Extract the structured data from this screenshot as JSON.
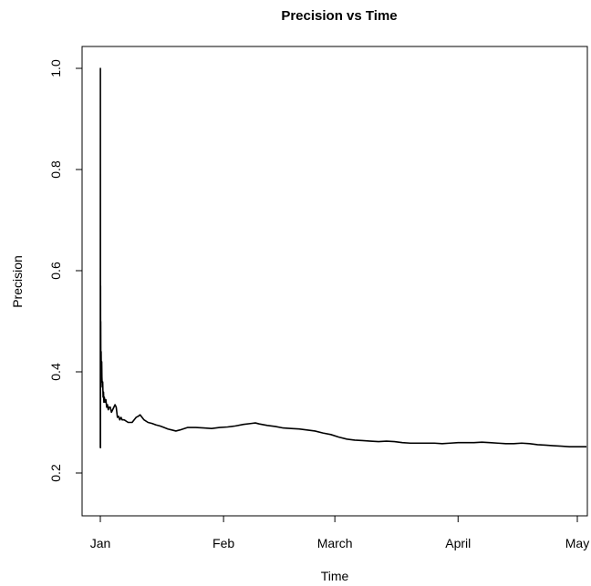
{
  "chart_data": {
    "type": "line",
    "title": "Precision vs Time",
    "xlabel": "Time",
    "ylabel": "Precision",
    "xlim": [
      0,
      121
    ],
    "ylim": [
      0.12,
      1.03
    ],
    "x_ticks": [
      {
        "label": "Jan",
        "x": 0
      },
      {
        "label": "Feb",
        "x": 31
      },
      {
        "label": "March",
        "x": 59
      },
      {
        "label": "April",
        "x": 90
      },
      {
        "label": "May",
        "x": 120
      }
    ],
    "y_ticks": [
      0.2,
      0.4,
      0.6,
      0.8,
      1.0
    ],
    "y_tick_labels": [
      "0.2",
      "0.4",
      "0.6",
      "0.8",
      "1.0"
    ],
    "grid": false,
    "series": [
      {
        "color": "#000000",
        "x": [
          0.0,
          0.02,
          0.04,
          0.06,
          0.08,
          0.1,
          0.13,
          0.16,
          0.2,
          0.25,
          0.3,
          0.35,
          0.4,
          0.5,
          0.6,
          0.7,
          0.8,
          0.9,
          1.0,
          1.2,
          1.4,
          1.6,
          1.8,
          2.0,
          2.2,
          2.5,
          2.8,
          3.1,
          3.4,
          3.7,
          4.0,
          4.3,
          4.6,
          4.9,
          5.2,
          5.5,
          6.0,
          7.0,
          8.0,
          9.0,
          9.5,
          10.0,
          11.0,
          12.0,
          13.0,
          14.0,
          15.0,
          16.0,
          17.0,
          18.0,
          19.0,
          20.0,
          22.0,
          24.0,
          26.0,
          28.0,
          30.0,
          32.0,
          34.0,
          36.0,
          38.0,
          39.0,
          40.0,
          42.0,
          44.0,
          46.0,
          48.0,
          50.0,
          52.0,
          54.0,
          56.0,
          58.0,
          60.0,
          62.0,
          64.0,
          66.0,
          68.0,
          70.0,
          72.0,
          74.0,
          76.0,
          78.0,
          80.0,
          82.0,
          84.0,
          86.0,
          88.0,
          90.0,
          92.0,
          94.0,
          96.0,
          98.0,
          100.0,
          102.0,
          104.0,
          106.0,
          108.0,
          110.0,
          112.0,
          114.0,
          116.0,
          118.0,
          120.0,
          123.0
        ],
        "y": [
          0.25,
          1.0,
          0.25,
          0.57,
          0.38,
          0.5,
          0.4,
          0.42,
          0.44,
          0.4,
          0.38,
          0.42,
          0.39,
          0.37,
          0.38,
          0.35,
          0.36,
          0.34,
          0.35,
          0.34,
          0.345,
          0.33,
          0.335,
          0.325,
          0.33,
          0.33,
          0.32,
          0.325,
          0.33,
          0.335,
          0.33,
          0.31,
          0.312,
          0.305,
          0.31,
          0.305,
          0.305,
          0.3,
          0.3,
          0.31,
          0.312,
          0.315,
          0.305,
          0.3,
          0.298,
          0.295,
          0.293,
          0.29,
          0.287,
          0.285,
          0.283,
          0.285,
          0.29,
          0.29,
          0.289,
          0.288,
          0.29,
          0.291,
          0.293,
          0.296,
          0.298,
          0.299,
          0.297,
          0.294,
          0.292,
          0.289,
          0.288,
          0.287,
          0.285,
          0.283,
          0.279,
          0.276,
          0.271,
          0.267,
          0.265,
          0.264,
          0.263,
          0.262,
          0.263,
          0.262,
          0.26,
          0.259,
          0.259,
          0.259,
          0.259,
          0.258,
          0.259,
          0.26,
          0.26,
          0.26,
          0.261,
          0.26,
          0.259,
          0.258,
          0.258,
          0.259,
          0.258,
          0.256,
          0.255,
          0.254,
          0.253,
          0.252,
          0.252,
          0.252
        ]
      }
    ]
  }
}
